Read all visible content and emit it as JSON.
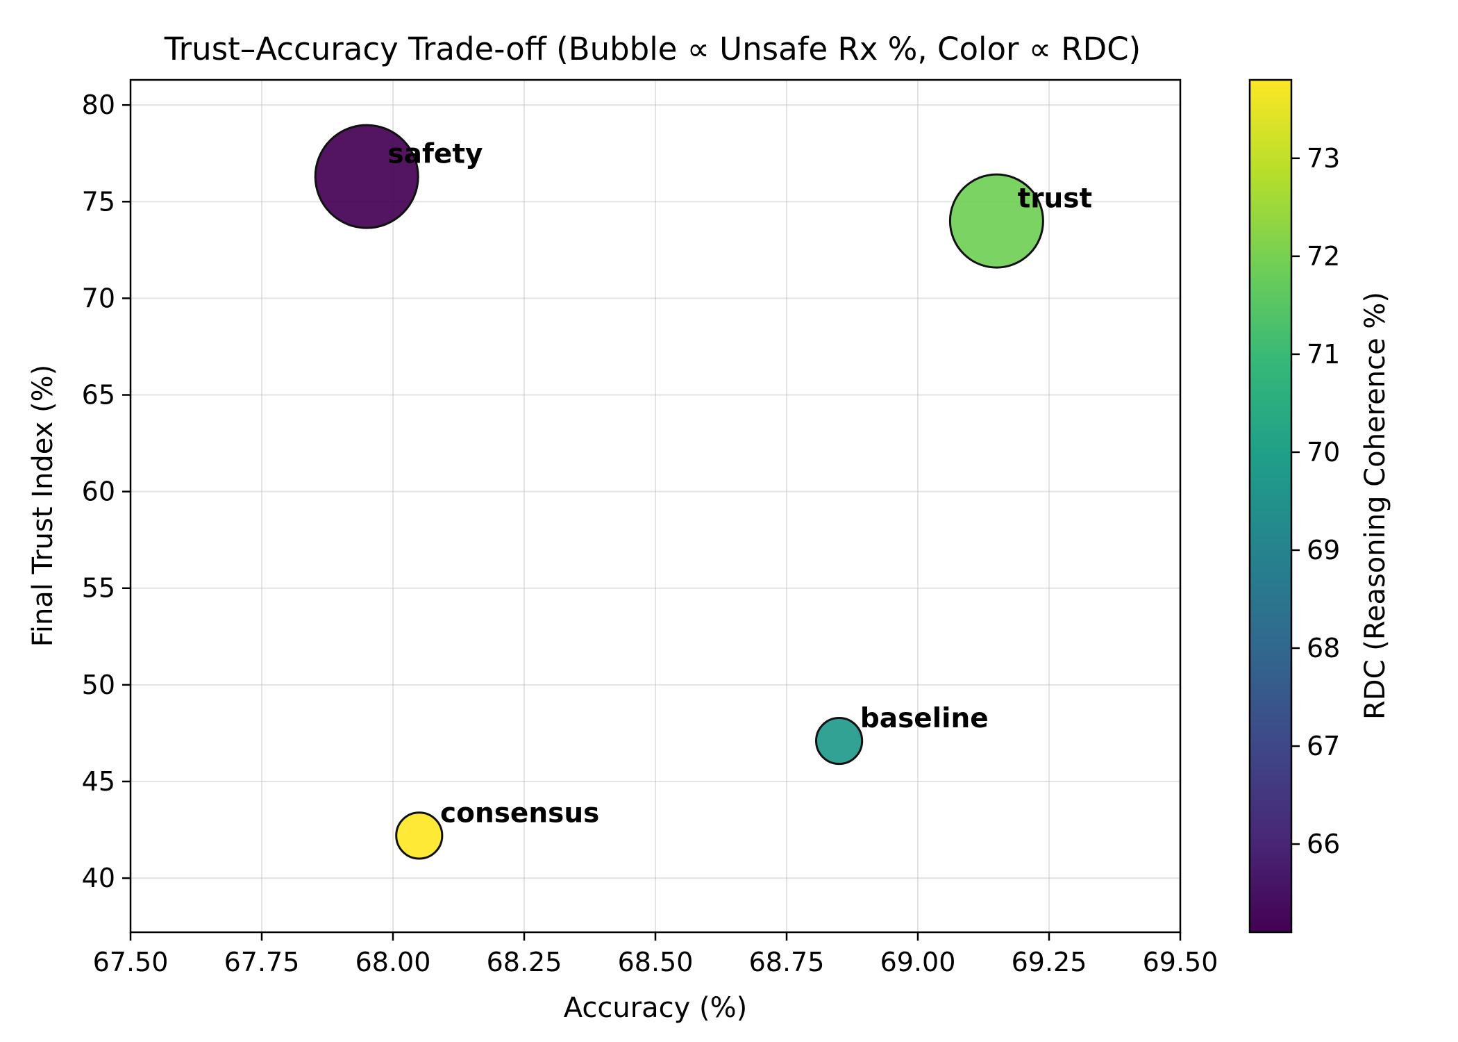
{
  "chart_data": {
    "type": "scatter",
    "title": "Trust–Accuracy Trade-off (Bubble ∝ Unsafe Rx %, Color ∝ RDC)",
    "xlabel": "Accuracy (%)",
    "ylabel": "Final Trust Index (%)",
    "xlim": [
      67.5,
      69.5
    ],
    "ylim": [
      37.2,
      81.3
    ],
    "xticks": [
      "67.50",
      "67.75",
      "68.00",
      "68.25",
      "68.50",
      "68.75",
      "69.00",
      "69.25",
      "69.50"
    ],
    "yticks": [
      "40",
      "45",
      "50",
      "55",
      "60",
      "65",
      "70",
      "75",
      "80"
    ],
    "grid": true,
    "points": [
      {
        "label": "safety",
        "x": 67.95,
        "y": 76.3,
        "rdc": 65.1,
        "unsafe_rx_relative_size": 1.0
      },
      {
        "label": "trust",
        "x": 69.15,
        "y": 74.0,
        "rdc": 71.9,
        "unsafe_rx_relative_size": 0.82
      },
      {
        "label": "baseline",
        "x": 68.85,
        "y": 47.1,
        "rdc": 69.8,
        "unsafe_rx_relative_size": 0.2
      },
      {
        "label": "consensus",
        "x": 68.05,
        "y": 42.2,
        "rdc": 73.8,
        "unsafe_rx_relative_size": 0.2
      }
    ],
    "colorbar": {
      "label": "RDC (Reasoning Coherence %)",
      "colormap": "viridis",
      "range": [
        65.1,
        73.8
      ],
      "ticks": [
        "66",
        "67",
        "68",
        "69",
        "70",
        "71",
        "72",
        "73"
      ],
      "stops": [
        "#440154",
        "#482878",
        "#3e4989",
        "#31688e",
        "#26828e",
        "#1f9e89",
        "#35b779",
        "#6ece58",
        "#b5de2b",
        "#fde725"
      ]
    }
  }
}
